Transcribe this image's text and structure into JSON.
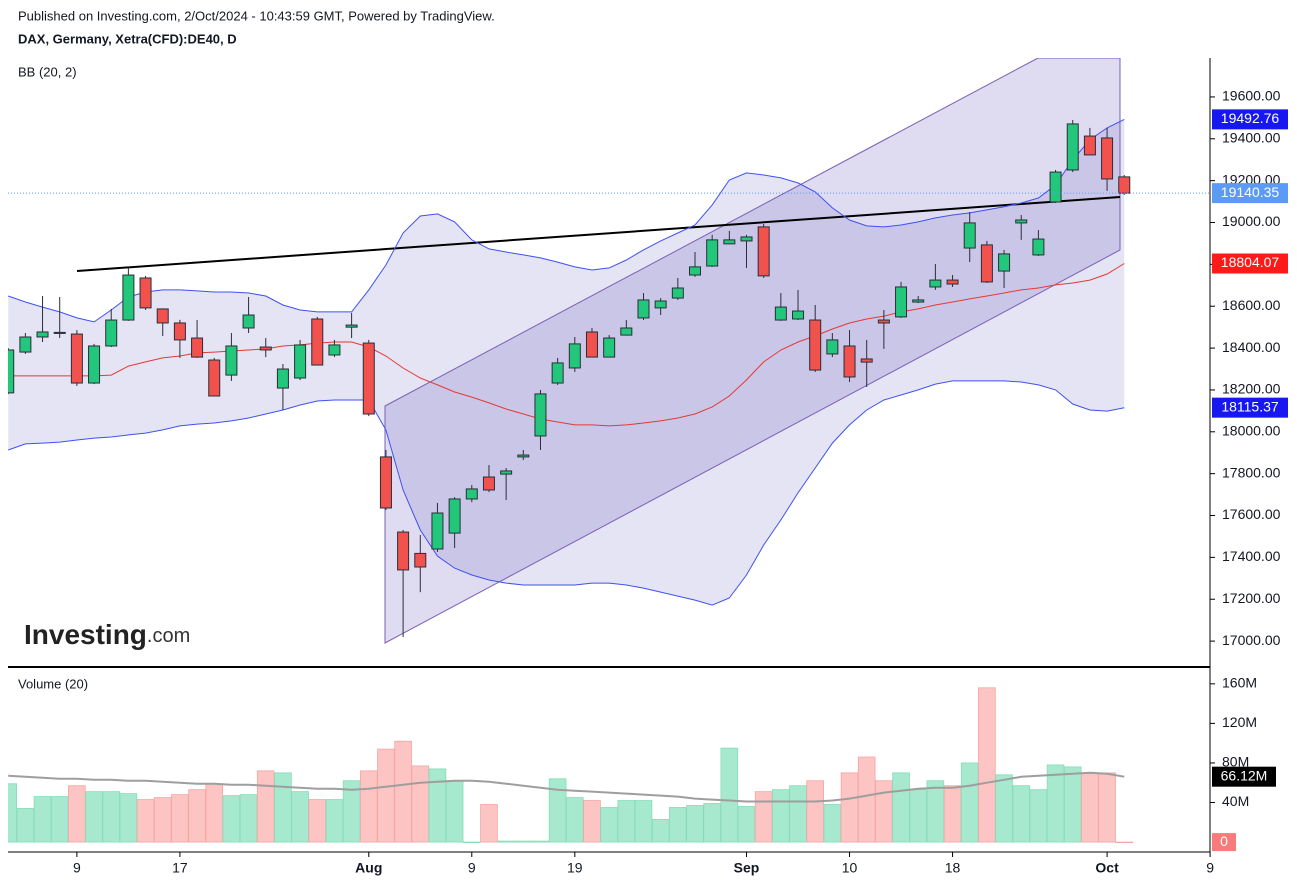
{
  "header": {
    "published": "Published on Investing.com, 2/Oct/2024 - 10:43:59 GMT, Powered by TradingView.",
    "symbol": "DAX, Germany, Xetra(CFD):DE40, D"
  },
  "logo": {
    "main": "Investing",
    "suffix": ".com"
  },
  "chart_data": {
    "type": "candlestick",
    "categories": [
      null,
      null,
      null,
      null,
      "9",
      null,
      null,
      null,
      null,
      null,
      "17",
      null,
      null,
      null,
      null,
      null,
      null,
      null,
      null,
      null,
      null,
      "Aug",
      null,
      null,
      null,
      null,
      null,
      "9",
      null,
      null,
      null,
      null,
      null,
      "19",
      null,
      null,
      null,
      null,
      null,
      null,
      null,
      null,
      null,
      "Sep",
      null,
      null,
      null,
      null,
      null,
      "10",
      null,
      null,
      null,
      null,
      null,
      "18",
      null,
      null,
      null,
      null,
      null,
      null,
      null,
      null,
      "Oct",
      null,
      null,
      null,
      null,
      null,
      "9"
    ],
    "open": [
      18186,
      18381,
      18453,
      18470,
      18467,
      18233,
      18410,
      18534,
      18735,
      18587,
      18520,
      18448,
      18343,
      18271,
      18496,
      18405,
      18209,
      18257,
      18539,
      18367,
      18500,
      18424,
      17880,
      17521,
      17419,
      17440,
      17516,
      17679,
      17784,
      17798,
      17880,
      17980,
      18233,
      18305,
      18477,
      18357,
      18462,
      18544,
      18592,
      18639,
      18749,
      18792,
      18898,
      18912,
      18979,
      18534,
      18539,
      18534,
      18372,
      18410,
      18348,
      18534,
      18549,
      18620,
      18692,
      18725,
      18878,
      18893,
      18768,
      18998,
      18845,
      19098,
      19251,
      19413,
      19404,
      19218,
      null,
      null,
      null,
      null,
      null
    ],
    "high": [
      18400,
      18472,
      18649,
      18644,
      18486,
      18420,
      18587,
      18782,
      18745,
      18590,
      18535,
      18534,
      18353,
      18472,
      18644,
      18448,
      18324,
      18439,
      18549,
      18439,
      18568,
      18439,
      17913,
      17531,
      17507,
      17660,
      17688,
      17746,
      17841,
      17827,
      17913,
      18200,
      18353,
      18453,
      18496,
      18462,
      18534,
      18663,
      18639,
      18735,
      18859,
      18941,
      18960,
      18941,
      18993,
      18663,
      18678,
      18606,
      18472,
      18486,
      18439,
      18582,
      18716,
      18649,
      18802,
      18749,
      19050,
      18912,
      18869,
      19036,
      18964,
      19251,
      19490,
      19452,
      19452,
      19227,
      null,
      null,
      null,
      null,
      null
    ],
    "low": [
      18180,
      18372,
      18429,
      18448,
      18219,
      18228,
      18405,
      18530,
      18582,
      18458,
      18353,
      18353,
      18170,
      18243,
      18472,
      18357,
      18104,
      18247,
      18319,
      18357,
      18448,
      18075,
      17626,
      17019,
      17234,
      17426,
      17445,
      17664,
      17712,
      17674,
      17865,
      17913,
      18224,
      18286,
      18357,
      18357,
      18462,
      18534,
      18558,
      18630,
      18740,
      18788,
      18898,
      18783,
      18735,
      18530,
      18534,
      18286,
      18357,
      18238,
      18214,
      18396,
      18544,
      18615,
      18678,
      18692,
      18811,
      18711,
      18687,
      18917,
      18840,
      19093,
      19241,
      19323,
      19151,
      19132,
      null,
      null,
      null,
      null,
      null
    ],
    "close": [
      18391,
      18453,
      18477,
      18475,
      18233,
      18410,
      18534,
      18749,
      18592,
      18520,
      18439,
      18357,
      18171,
      18410,
      18558,
      18391,
      18300,
      18415,
      18319,
      18415,
      18510,
      18085,
      17636,
      17340,
      17354,
      17612,
      17679,
      17727,
      17722,
      17813,
      17889,
      18181,
      18329,
      18420,
      18357,
      18448,
      18496,
      18630,
      18625,
      18687,
      18788,
      18917,
      18917,
      18931,
      18745,
      18596,
      18577,
      18295,
      18439,
      18262,
      18333,
      18520,
      18692,
      18630,
      18725,
      18706,
      18998,
      18716,
      18850,
      19012,
      18921,
      19241,
      19471,
      19323,
      19208,
      19140.35,
      null,
      null,
      null,
      null,
      null
    ],
    "up_color": "#22c77b",
    "down_color": "#f2524e",
    "last_price_color": "#5b9bf5",
    "ylim": [
      16881,
      19786
    ],
    "yticks": [
      {
        "value": 17000,
        "label": "17000.00"
      },
      {
        "value": 17200,
        "label": "17200.00"
      },
      {
        "value": 17400,
        "label": "17400.00"
      },
      {
        "value": 17600,
        "label": "17600.00"
      },
      {
        "value": 17800,
        "label": "17800.00"
      },
      {
        "value": 18000,
        "label": "18000.00"
      },
      {
        "value": 18200,
        "label": "18200.00"
      },
      {
        "value": 18400,
        "label": "18400.00"
      },
      {
        "value": 18600,
        "label": "18600.00"
      },
      {
        "value": 18800,
        "label": "18800.00"
      },
      {
        "value": 19000,
        "label": "19000.00"
      },
      {
        "value": 19200,
        "label": "19200.00"
      },
      {
        "value": 19400,
        "label": "19400.00"
      },
      {
        "value": 19600,
        "label": "19600.00"
      }
    ],
    "bollinger": {
      "label": "BB (20, 2)",
      "band_color": "#3f51f0",
      "middle_color": "#e53935",
      "upper": [
        18649,
        18620,
        18596,
        18573,
        18544,
        18525,
        18582,
        18644,
        18668,
        18678,
        18678,
        18673,
        18668,
        18668,
        18663,
        18649,
        18606,
        18582,
        18573,
        18573,
        18573,
        18678,
        18797,
        18950,
        19031,
        19041,
        19003,
        18917,
        18874,
        18859,
        18845,
        18831,
        18811,
        18788,
        18773,
        18783,
        18821,
        18869,
        18912,
        18950,
        18988,
        19084,
        19203,
        19237,
        19227,
        19213,
        19189,
        19146,
        19070,
        19012,
        18984,
        18979,
        18988,
        19003,
        19022,
        19036,
        19046,
        19060,
        19075,
        19093,
        19117,
        19179,
        19299,
        19395,
        19452,
        19492.76,
        null,
        null,
        null,
        null,
        null
      ],
      "middle": [
        18267,
        18267,
        18267,
        18267,
        18267,
        18267,
        18271,
        18314,
        18334,
        18353,
        18362,
        18377,
        18381,
        18386,
        18391,
        18396,
        18410,
        18415,
        18424,
        18429,
        18429,
        18405,
        18362,
        18305,
        18257,
        18224,
        18190,
        18166,
        18138,
        18109,
        18085,
        18061,
        18047,
        18033,
        18033,
        18028,
        18033,
        18042,
        18052,
        18066,
        18085,
        18119,
        18171,
        18248,
        18334,
        18391,
        18429,
        18458,
        18491,
        18520,
        18539,
        18553,
        18573,
        18587,
        18606,
        18620,
        18635,
        18649,
        18663,
        18678,
        18687,
        18702,
        18711,
        18725,
        18754,
        18804.07,
        null,
        null,
        null,
        null,
        null
      ],
      "lower": [
        17913,
        17942,
        17946,
        17951,
        17961,
        17970,
        17975,
        17985,
        17994,
        18009,
        18028,
        18037,
        18042,
        18052,
        18066,
        18085,
        18104,
        18128,
        18147,
        18152,
        18152,
        18152,
        18009,
        17722,
        17531,
        17406,
        17349,
        17316,
        17292,
        17277,
        17268,
        17268,
        17268,
        17268,
        17277,
        17277,
        17268,
        17253,
        17234,
        17215,
        17196,
        17172,
        17206,
        17316,
        17459,
        17579,
        17708,
        17827,
        17946,
        18033,
        18104,
        18152,
        18176,
        18200,
        18228,
        18243,
        18243,
        18243,
        18243,
        18238,
        18224,
        18200,
        18133,
        18104,
        18099,
        18115.37,
        null,
        null,
        null,
        null,
        null
      ]
    },
    "volume": {
      "label": "Volume (20)",
      "up_color": "#a6e9cf",
      "down_color": "#fcc4c2",
      "ma_color": "#9e9e9e",
      "values": [
        59,
        34,
        46,
        46,
        57,
        51,
        51,
        49,
        43,
        45,
        48,
        53,
        59,
        47,
        48,
        72,
        70,
        51,
        43,
        43,
        62,
        72,
        94,
        102,
        77,
        74,
        62,
        0,
        38,
        1,
        1,
        1,
        64,
        45,
        42,
        35,
        42,
        42,
        23,
        35,
        37,
        39,
        95,
        36,
        51,
        53,
        57,
        62,
        38,
        70,
        86,
        62,
        70,
        53,
        62,
        57,
        80,
        156,
        68,
        57,
        53,
        78,
        76,
        70,
        70,
        0,
        null,
        null,
        null,
        null,
        null
      ],
      "ma": [
        67,
        66,
        65,
        64,
        64,
        63,
        63,
        62,
        62,
        61,
        60,
        59,
        59,
        58,
        58,
        57,
        56,
        55,
        54,
        54,
        53,
        54,
        56,
        58,
        60,
        61,
        62,
        62,
        61,
        59,
        57,
        55,
        53,
        52,
        51,
        50,
        49,
        48,
        47,
        46,
        44,
        43,
        42,
        41,
        41,
        41,
        41,
        41,
        42,
        44,
        47,
        50,
        52,
        54,
        55,
        55,
        57,
        60,
        63,
        66,
        67,
        68,
        69,
        70,
        69,
        66.12,
        null,
        null,
        null,
        null,
        null
      ],
      "ma_value_labels": [
        null,
        null,
        null,
        null,
        null,
        null,
        null,
        null,
        null,
        null,
        null,
        null,
        null,
        null,
        null,
        null,
        null,
        null,
        null,
        null,
        null,
        null,
        null,
        null,
        null,
        null,
        null,
        null,
        null,
        null,
        null,
        null,
        null,
        null,
        null,
        null,
        null,
        null,
        null,
        null,
        null,
        null,
        null,
        null,
        null,
        null,
        null,
        null,
        null,
        null,
        null,
        null,
        null,
        null,
        null,
        null,
        null,
        null,
        null,
        null,
        null,
        null,
        null,
        null,
        null,
        "66.12M",
        null,
        null,
        null,
        null,
        null
      ],
      "ylim": [
        -8,
        176
      ],
      "yticks": [
        {
          "value": 40,
          "label": "40M"
        },
        {
          "value": 80,
          "label": "80M"
        },
        {
          "value": 120,
          "label": "120M"
        },
        {
          "value": 160,
          "label": "160M"
        }
      ]
    }
  }
}
